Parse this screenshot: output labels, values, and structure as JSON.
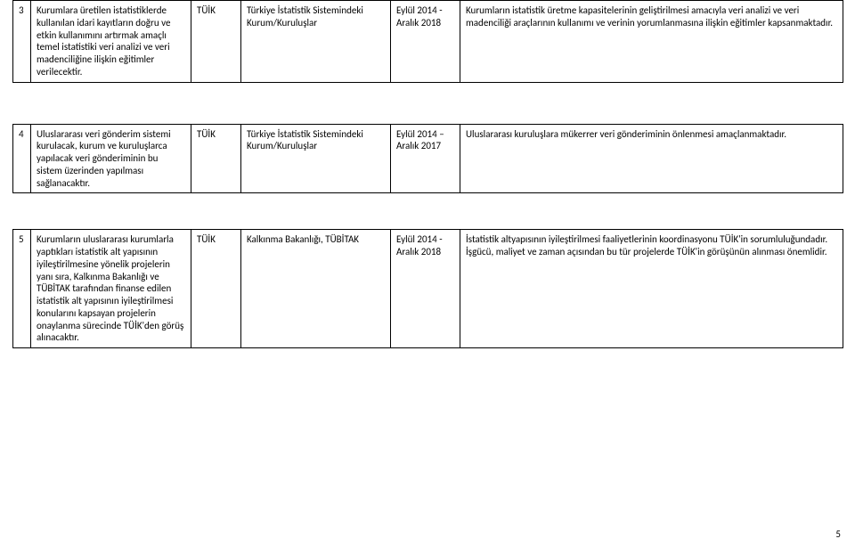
{
  "rows": [
    {
      "idx": "3",
      "desc": "Kurumlara üretilen istatistiklerde kullanılan idari kayıtların doğru ve etkin kullanımını artırmak amaçlı temel istatistiki veri analizi ve veri madenciliğine ilişkin eğitimler verilecektir.",
      "org": "TÜİK",
      "scope": "Türkiye İstatistik Sistemindeki Kurum/Kuruluşlar",
      "date": "Eylül 2014 - Aralık 2018",
      "note": "Kurumların istatistik üretme kapasitelerinin geliştirilmesi amacıyla veri analizi ve veri madenciliği araçlarının kullanımı ve verinin yorumlanmasına ilişkin eğitimler kapsanmaktadır."
    },
    {
      "idx": "4",
      "desc": "Uluslararası veri gönderim sistemi kurulacak, kurum ve kuruluşlarca yapılacak veri gönderiminin bu sistem üzerinden yapılması sağlanacaktır.",
      "org": "TÜİK",
      "scope": "Türkiye İstatistik Sistemindeki Kurum/Kuruluşlar",
      "date": "Eylül 2014 – Aralık 2017",
      "note": "Uluslararası kuruluşlara mükerrer veri gönderiminin önlenmesi amaçlanmaktadır."
    },
    {
      "idx": "5",
      "desc": "Kurumların uluslararası kurumlarla yaptıkları istatistik alt yapısının iyileştirilmesine yönelik projelerin yanı sıra, Kalkınma Bakanlığı ve TÜBİTAK tarafından finanse edilen istatistik alt yapısının iyileştirilmesi konularını kapsayan projelerin onaylanma sürecinde TÜİK'den görüş alınacaktır.",
      "org": "TÜİK",
      "scope": "Kalkınma Bakanlığı, TÜBİTAK",
      "date": "Eylül 2014 - Aralık 2018",
      "note": "İstatistik altyapısının iyileştirilmesi faaliyetlerinin koordinasyonu TÜİK'in sorumluluğundadır.  İşgücü, maliyet ve zaman açısından bu tür projelerde TÜİK'in görüşünün alınması önemlidir."
    }
  ],
  "page_number": "5"
}
